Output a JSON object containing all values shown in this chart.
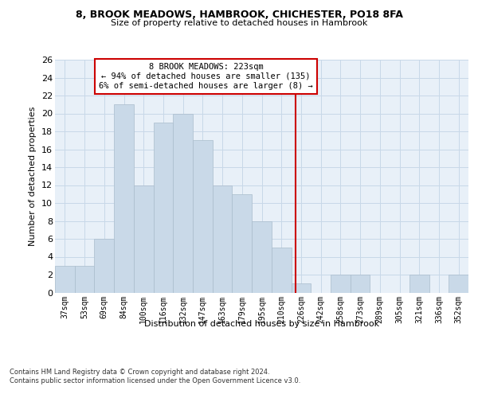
{
  "title1": "8, BROOK MEADOWS, HAMBROOK, CHICHESTER, PO18 8FA",
  "title2": "Size of property relative to detached houses in Hambrook",
  "xlabel": "Distribution of detached houses by size in Hambrook",
  "ylabel": "Number of detached properties",
  "bar_labels": [
    "37sqm",
    "53sqm",
    "69sqm",
    "84sqm",
    "100sqm",
    "116sqm",
    "132sqm",
    "147sqm",
    "163sqm",
    "179sqm",
    "195sqm",
    "210sqm",
    "226sqm",
    "242sqm",
    "258sqm",
    "273sqm",
    "289sqm",
    "305sqm",
    "321sqm",
    "336sqm",
    "352sqm"
  ],
  "bar_heights": [
    3,
    3,
    6,
    21,
    12,
    19,
    20,
    17,
    12,
    11,
    8,
    5,
    1,
    0,
    2,
    2,
    0,
    0,
    2,
    0,
    2
  ],
  "bar_color": "#c9d9e8",
  "bar_edgecolor": "#aabccc",
  "vline_index": 11.72,
  "annotation_text": "8 BROOK MEADOWS: 223sqm\n← 94% of detached houses are smaller (135)\n6% of semi-detached houses are larger (8) →",
  "annotation_box_color": "#ffffff",
  "annotation_box_edgecolor": "#cc0000",
  "vline_color": "#cc0000",
  "grid_color": "#c8d8e8",
  "background_color": "#e8f0f8",
  "footer1": "Contains HM Land Registry data © Crown copyright and database right 2024.",
  "footer2": "Contains public sector information licensed under the Open Government Licence v3.0.",
  "ylim": [
    0,
    26
  ],
  "yticks": [
    0,
    2,
    4,
    6,
    8,
    10,
    12,
    14,
    16,
    18,
    20,
    22,
    24,
    26
  ]
}
